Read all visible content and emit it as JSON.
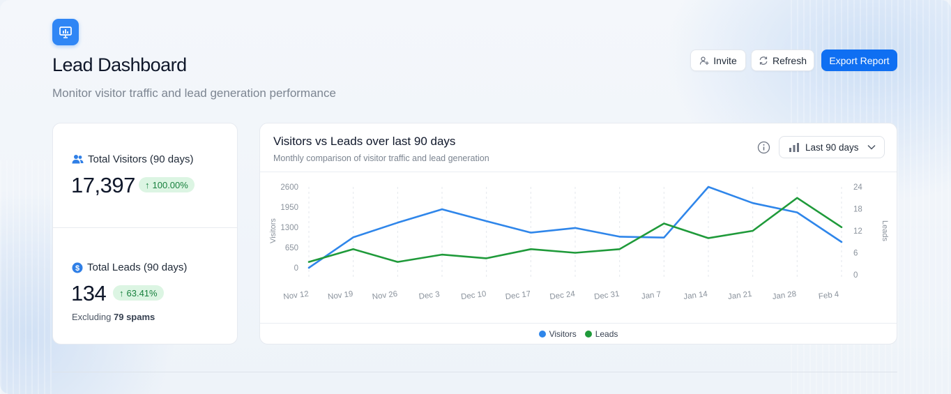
{
  "header": {
    "title": "Lead Dashboard",
    "subtitle": "Monitor visitor traffic and lead generation performance"
  },
  "actions": {
    "invite_label": "Invite",
    "refresh_label": "Refresh",
    "export_label": "Export Report"
  },
  "stats": {
    "visitors": {
      "label": "Total Visitors (90 days)",
      "value": "17,397",
      "change": "100.00%"
    },
    "leads": {
      "label": "Total Leads (90 days)",
      "value": "134",
      "change": "63.41%",
      "note_prefix": "Excluding",
      "note_value": "79 spams"
    }
  },
  "colors": {
    "accent": "#0f6ff2",
    "visitors": "#2f86ea",
    "leads": "#1f9a3a",
    "badge_bg": "#dcf5e3",
    "badge_text": "#17803d"
  },
  "chart": {
    "title": "Visitors vs Leads over last 90 days",
    "subtitle": "Monthly comparison of visitor traffic and lead generation",
    "range_label": "Last 90 days"
  },
  "chart_data": {
    "type": "line",
    "categories": [
      "Nov 12",
      "Nov 19",
      "Nov 26",
      "Dec 3",
      "Dec 10",
      "Dec 17",
      "Dec 24",
      "Dec 31",
      "Jan 7",
      "Jan 14",
      "Jan 21",
      "Jan 28",
      "Feb 4"
    ],
    "series": [
      {
        "name": "Visitors",
        "axis": "left",
        "values": [
          0,
          980,
          1450,
          1880,
          1500,
          1130,
          1280,
          1000,
          970,
          2600,
          2080,
          1780,
          830
        ]
      },
      {
        "name": "Leads",
        "axis": "right",
        "values": [
          3.5,
          7,
          3.5,
          5.5,
          4.5,
          7,
          6,
          7,
          14,
          10,
          12,
          21,
          13
        ]
      }
    ],
    "left_axis": {
      "label": "Visitors",
      "ylim": [
        0,
        2600
      ],
      "ticks": [
        "2600",
        "1950",
        "1300",
        "650",
        "0"
      ]
    },
    "right_axis": {
      "label": "Leads",
      "ylim": [
        0,
        24
      ],
      "ticks": [
        "24",
        "18",
        "12",
        "6",
        "0"
      ]
    },
    "legend": [
      "Visitors",
      "Leads"
    ],
    "legend_position": "bottom-center"
  }
}
